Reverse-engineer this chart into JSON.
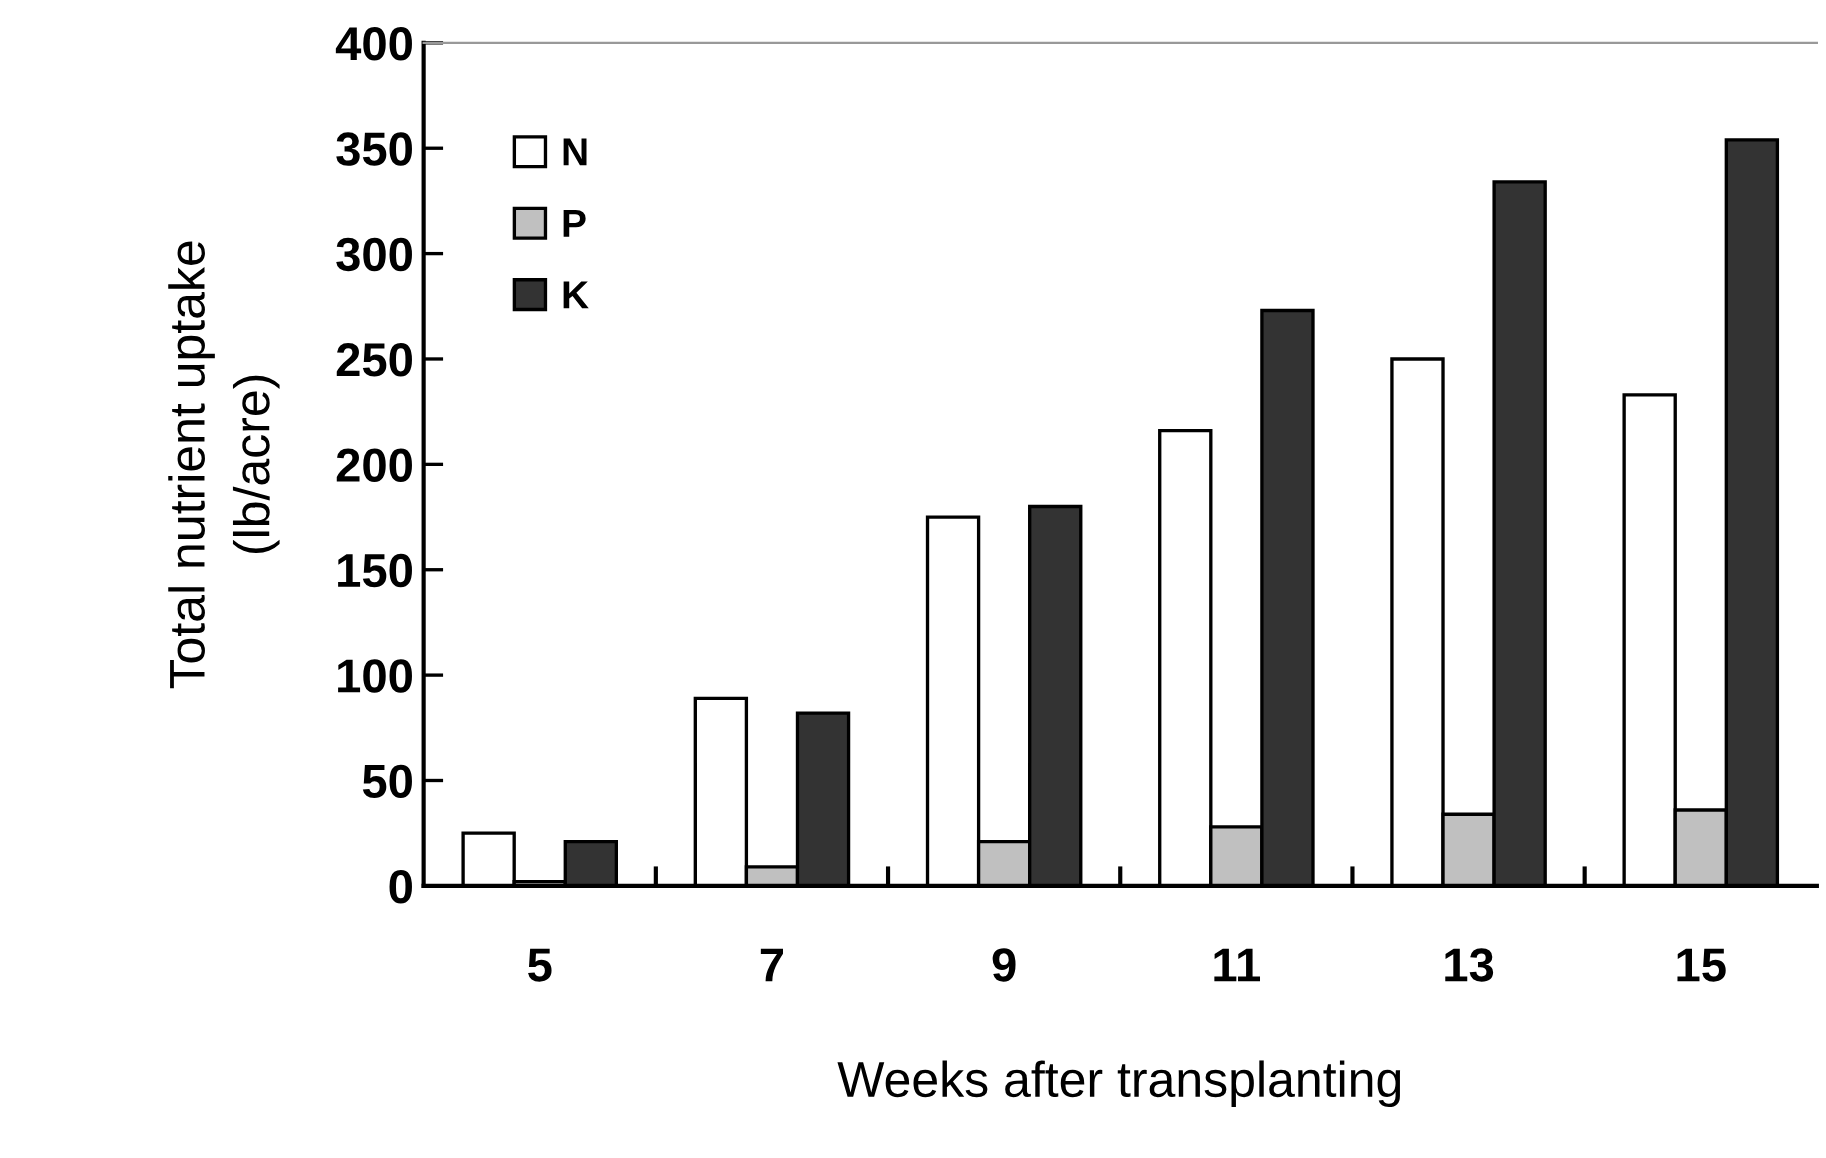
{
  "chart_data": {
    "type": "bar",
    "xlabel": "Weeks after transplanting",
    "ylabel": "Total nutrient uptake\n(lb/acre)",
    "categories": [
      "5",
      "7",
      "9",
      "11",
      "13",
      "15"
    ],
    "series": [
      {
        "name": "N",
        "color": "#ffffff",
        "values": [
          25,
          89,
          175,
          216,
          250,
          233
        ]
      },
      {
        "name": "P",
        "color": "#c0c0c0",
        "values": [
          2,
          9,
          21,
          28,
          34,
          36
        ]
      },
      {
        "name": "K",
        "color": "#333333",
        "values": [
          21,
          82,
          180,
          273,
          334,
          354
        ]
      }
    ],
    "ylim": [
      0,
      400
    ],
    "yticks": [
      0,
      50,
      100,
      150,
      200,
      250,
      300,
      350,
      400
    ],
    "grid": false,
    "legend": "top left"
  }
}
